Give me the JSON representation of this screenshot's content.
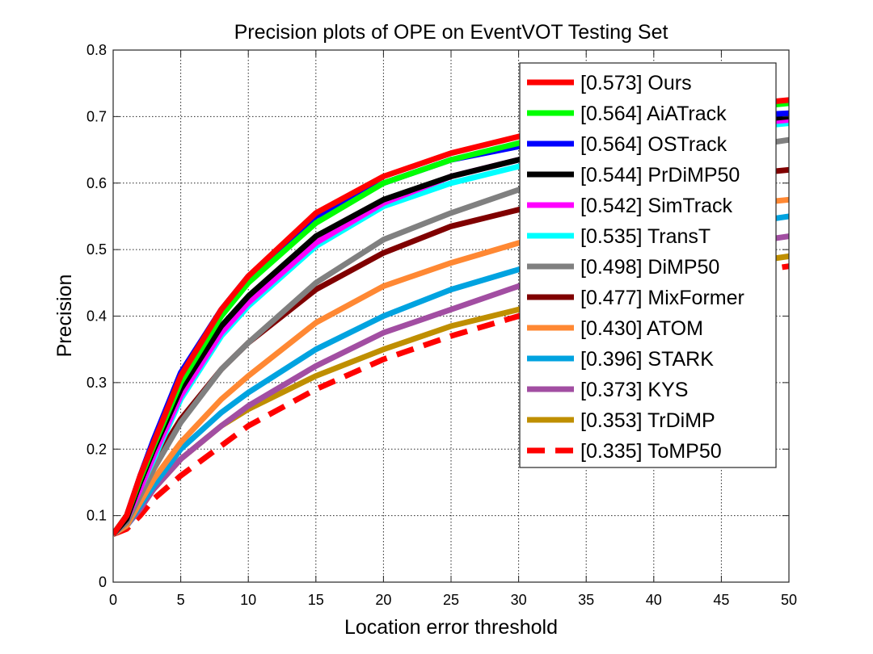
{
  "chart_data": {
    "type": "line",
    "title": "Precision plots of OPE on EventVOT Testing Set",
    "xlabel": "Location error threshold",
    "ylabel": "Precision",
    "xlim": [
      0,
      50
    ],
    "ylim": [
      0,
      0.8
    ],
    "xticks": [
      "0",
      "5",
      "10",
      "15",
      "20",
      "25",
      "30",
      "35",
      "40",
      "45",
      "50"
    ],
    "yticks": [
      "0",
      "0.1",
      "0.2",
      "0.3",
      "0.4",
      "0.5",
      "0.6",
      "0.7",
      "0.8"
    ],
    "grid": true,
    "legend_position": "top-right",
    "x": [
      0,
      1,
      2,
      3,
      5,
      8,
      10,
      15,
      20,
      25,
      30,
      35,
      40,
      45,
      50
    ],
    "series": [
      {
        "name": "[0.573] Ours",
        "color": "#ff0000",
        "dashed": false,
        "values": [
          0.072,
          0.1,
          0.16,
          0.21,
          0.31,
          0.41,
          0.46,
          0.555,
          0.61,
          0.645,
          0.67,
          0.69,
          0.705,
          0.715,
          0.725
        ]
      },
      {
        "name": "[0.564] AiATrack",
        "color": "#00ff00",
        "dashed": false,
        "values": [
          0.072,
          0.1,
          0.155,
          0.205,
          0.3,
          0.4,
          0.45,
          0.54,
          0.6,
          0.635,
          0.66,
          0.68,
          0.7,
          0.71,
          0.72
        ]
      },
      {
        "name": "[0.564] OSTrack",
        "color": "#0000ff",
        "dashed": false,
        "values": [
          0.072,
          0.1,
          0.16,
          0.215,
          0.315,
          0.41,
          0.46,
          0.55,
          0.6,
          0.635,
          0.655,
          0.675,
          0.69,
          0.7,
          0.705
        ]
      },
      {
        "name": "[0.544] PrDiMP50",
        "color": "#000000",
        "dashed": false,
        "values": [
          0.072,
          0.095,
          0.15,
          0.2,
          0.29,
          0.385,
          0.43,
          0.52,
          0.575,
          0.61,
          0.635,
          0.66,
          0.68,
          0.69,
          0.7
        ]
      },
      {
        "name": "[0.542] SimTrack",
        "color": "#ff00ff",
        "dashed": false,
        "values": [
          0.072,
          0.095,
          0.14,
          0.19,
          0.28,
          0.375,
          0.42,
          0.51,
          0.57,
          0.61,
          0.635,
          0.655,
          0.67,
          0.685,
          0.695
        ]
      },
      {
        "name": "[0.535] TransT",
        "color": "#00ffff",
        "dashed": false,
        "values": [
          0.072,
          0.095,
          0.14,
          0.185,
          0.275,
          0.37,
          0.415,
          0.505,
          0.565,
          0.6,
          0.625,
          0.65,
          0.665,
          0.68,
          0.69
        ]
      },
      {
        "name": "[0.498] DiMP50",
        "color": "#808080",
        "dashed": false,
        "values": [
          0.072,
          0.09,
          0.13,
          0.17,
          0.24,
          0.32,
          0.36,
          0.45,
          0.515,
          0.555,
          0.59,
          0.615,
          0.635,
          0.65,
          0.665
        ]
      },
      {
        "name": "[0.477] MixFormer",
        "color": "#800000",
        "dashed": false,
        "values": [
          0.072,
          0.095,
          0.14,
          0.18,
          0.245,
          0.32,
          0.36,
          0.44,
          0.495,
          0.535,
          0.56,
          0.58,
          0.595,
          0.61,
          0.62
        ]
      },
      {
        "name": "[0.430] ATOM",
        "color": "#ff8833",
        "dashed": false,
        "values": [
          0.072,
          0.085,
          0.12,
          0.155,
          0.21,
          0.275,
          0.31,
          0.39,
          0.445,
          0.48,
          0.51,
          0.535,
          0.55,
          0.565,
          0.575
        ]
      },
      {
        "name": "[0.396] STARK",
        "color": "#00a3e0",
        "dashed": false,
        "values": [
          0.072,
          0.085,
          0.115,
          0.145,
          0.2,
          0.255,
          0.285,
          0.35,
          0.4,
          0.44,
          0.47,
          0.495,
          0.515,
          0.535,
          0.55
        ]
      },
      {
        "name": "[0.373] KYS",
        "color": "#a24ea2",
        "dashed": false,
        "values": [
          0.072,
          0.085,
          0.11,
          0.14,
          0.185,
          0.235,
          0.265,
          0.325,
          0.375,
          0.41,
          0.445,
          0.465,
          0.485,
          0.505,
          0.52
        ]
      },
      {
        "name": "[0.353] TrDiMP",
        "color": "#bf8f00",
        "dashed": false,
        "values": [
          0.072,
          0.085,
          0.115,
          0.14,
          0.185,
          0.235,
          0.26,
          0.31,
          0.35,
          0.385,
          0.41,
          0.435,
          0.455,
          0.475,
          0.49
        ]
      },
      {
        "name": "[0.335] ToMP50",
        "color": "#ff0000",
        "dashed": true,
        "values": [
          0.072,
          0.08,
          0.1,
          0.125,
          0.16,
          0.205,
          0.235,
          0.29,
          0.335,
          0.37,
          0.4,
          0.425,
          0.445,
          0.46,
          0.475
        ]
      }
    ]
  }
}
